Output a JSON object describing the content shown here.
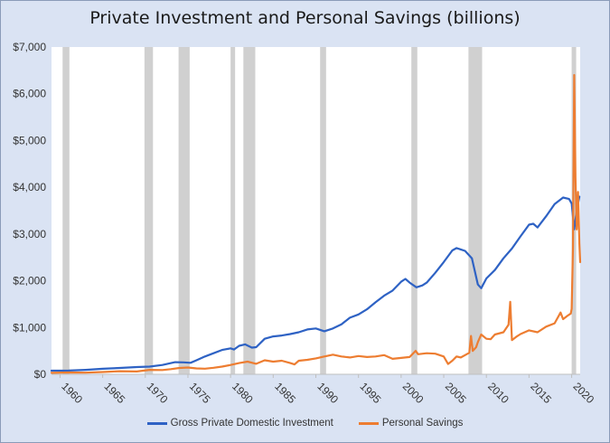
{
  "chart_data": {
    "type": "line",
    "title": "Private Investment and Personal Savings (billions)",
    "xlabel": "",
    "ylabel": "",
    "xlim": [
      1959,
      2021
    ],
    "ylim": [
      0,
      7000
    ],
    "y_ticks": [
      0,
      1000,
      2000,
      3000,
      4000,
      5000,
      6000,
      7000
    ],
    "y_tick_labels": [
      "$0",
      "$1,000",
      "$2,000",
      "$3,000",
      "$4,000",
      "$5,000",
      "$6,000",
      "$7,000"
    ],
    "x_ticks": [
      1960,
      1965,
      1970,
      1975,
      1980,
      1985,
      1990,
      1995,
      2000,
      2005,
      2010,
      2015,
      2020
    ],
    "x_tick_labels": [
      "1960",
      "1965",
      "1970",
      "1975",
      "1980",
      "1985",
      "1990",
      "1995",
      "2000",
      "2005",
      "2010",
      "2015",
      "2020"
    ],
    "grid": false,
    "legend_position": "bottom",
    "recessions": [
      [
        1960.3,
        1961.1
      ],
      [
        1969.9,
        1970.9
      ],
      [
        1973.9,
        1975.2
      ],
      [
        1980.0,
        1980.5
      ],
      [
        1981.5,
        1982.9
      ],
      [
        1990.5,
        1991.2
      ],
      [
        2001.2,
        2001.9
      ],
      [
        2007.9,
        2009.5
      ],
      [
        2020.0,
        2020.4
      ]
    ],
    "series": [
      {
        "name": "Gross Private Domestic Investment",
        "color": "#2e62c4",
        "points": [
          [
            1959,
            78
          ],
          [
            1961,
            80
          ],
          [
            1963,
            95
          ],
          [
            1965,
            118
          ],
          [
            1967,
            135
          ],
          [
            1969,
            155
          ],
          [
            1970.5,
            165
          ],
          [
            1972,
            200
          ],
          [
            1973.5,
            260
          ],
          [
            1974.5,
            255
          ],
          [
            1975.3,
            245
          ],
          [
            1976,
            300
          ],
          [
            1977,
            380
          ],
          [
            1978,
            450
          ],
          [
            1979,
            520
          ],
          [
            1980,
            555
          ],
          [
            1980.4,
            530
          ],
          [
            1981,
            610
          ],
          [
            1981.7,
            640
          ],
          [
            1982.5,
            570
          ],
          [
            1983,
            580
          ],
          [
            1984,
            760
          ],
          [
            1985,
            810
          ],
          [
            1986,
            830
          ],
          [
            1987,
            860
          ],
          [
            1988,
            900
          ],
          [
            1989,
            960
          ],
          [
            1990,
            980
          ],
          [
            1991,
            920
          ],
          [
            1992,
            980
          ],
          [
            1993,
            1070
          ],
          [
            1994,
            1210
          ],
          [
            1995,
            1280
          ],
          [
            1996,
            1390
          ],
          [
            1997,
            1540
          ],
          [
            1998,
            1680
          ],
          [
            1999,
            1790
          ],
          [
            2000,
            1980
          ],
          [
            2000.5,
            2040
          ],
          [
            2001,
            1960
          ],
          [
            2001.8,
            1860
          ],
          [
            2002.5,
            1900
          ],
          [
            2003,
            1960
          ],
          [
            2004,
            2170
          ],
          [
            2005,
            2400
          ],
          [
            2006,
            2650
          ],
          [
            2006.5,
            2700
          ],
          [
            2007.5,
            2640
          ],
          [
            2008.3,
            2480
          ],
          [
            2009,
            1920
          ],
          [
            2009.4,
            1840
          ],
          [
            2010,
            2050
          ],
          [
            2011,
            2230
          ],
          [
            2012,
            2480
          ],
          [
            2013,
            2690
          ],
          [
            2014,
            2950
          ],
          [
            2015,
            3200
          ],
          [
            2015.5,
            3220
          ],
          [
            2016,
            3140
          ],
          [
            2017,
            3380
          ],
          [
            2018,
            3640
          ],
          [
            2019,
            3780
          ],
          [
            2019.7,
            3750
          ],
          [
            2020.0,
            3650
          ],
          [
            2020.3,
            3100
          ],
          [
            2020.6,
            3500
          ],
          [
            2020.9,
            3800
          ]
        ]
      },
      {
        "name": "Personal Savings",
        "color": "#ed7d31",
        "points": [
          [
            1959,
            30
          ],
          [
            1961,
            38
          ],
          [
            1963,
            35
          ],
          [
            1965,
            48
          ],
          [
            1967,
            65
          ],
          [
            1969,
            60
          ],
          [
            1970.5,
            95
          ],
          [
            1972,
            90
          ],
          [
            1973,
            110
          ],
          [
            1974,
            135
          ],
          [
            1975,
            145
          ],
          [
            1976,
            125
          ],
          [
            1977,
            120
          ],
          [
            1978,
            140
          ],
          [
            1979,
            165
          ],
          [
            1980,
            200
          ],
          [
            1981,
            240
          ],
          [
            1982,
            270
          ],
          [
            1983,
            225
          ],
          [
            1984,
            300
          ],
          [
            1985,
            270
          ],
          [
            1986,
            290
          ],
          [
            1987,
            240
          ],
          [
            1987.5,
            210
          ],
          [
            1988,
            290
          ],
          [
            1989,
            310
          ],
          [
            1990,
            340
          ],
          [
            1991,
            380
          ],
          [
            1992,
            420
          ],
          [
            1993,
            380
          ],
          [
            1994,
            360
          ],
          [
            1995,
            390
          ],
          [
            1996,
            370
          ],
          [
            1997,
            380
          ],
          [
            1998,
            410
          ],
          [
            1999,
            330
          ],
          [
            2000,
            350
          ],
          [
            2001,
            370
          ],
          [
            2001.7,
            500
          ],
          [
            2002,
            430
          ],
          [
            2003,
            450
          ],
          [
            2004,
            440
          ],
          [
            2005,
            380
          ],
          [
            2005.5,
            220
          ],
          [
            2006,
            290
          ],
          [
            2006.5,
            380
          ],
          [
            2007,
            360
          ],
          [
            2007.5,
            410
          ],
          [
            2008.0,
            460
          ],
          [
            2008.2,
            820
          ],
          [
            2008.4,
            500
          ],
          [
            2008.8,
            580
          ],
          [
            2009,
            690
          ],
          [
            2009.4,
            850
          ],
          [
            2010,
            760
          ],
          [
            2010.5,
            750
          ],
          [
            2011,
            850
          ],
          [
            2012,
            900
          ],
          [
            2012.6,
            1060
          ],
          [
            2012.8,
            1550
          ],
          [
            2013,
            730
          ],
          [
            2013.5,
            800
          ],
          [
            2014,
            860
          ],
          [
            2015,
            940
          ],
          [
            2016,
            900
          ],
          [
            2017,
            1020
          ],
          [
            2018,
            1090
          ],
          [
            2018.7,
            1320
          ],
          [
            2019,
            1180
          ],
          [
            2019.5,
            1250
          ],
          [
            2019.9,
            1300
          ],
          [
            2020.0,
            1400
          ],
          [
            2020.15,
            2700
          ],
          [
            2020.3,
            6400
          ],
          [
            2020.45,
            4200
          ],
          [
            2020.6,
            3100
          ],
          [
            2020.75,
            3900
          ],
          [
            2020.9,
            2800
          ],
          [
            2021.0,
            2400
          ]
        ]
      }
    ]
  }
}
